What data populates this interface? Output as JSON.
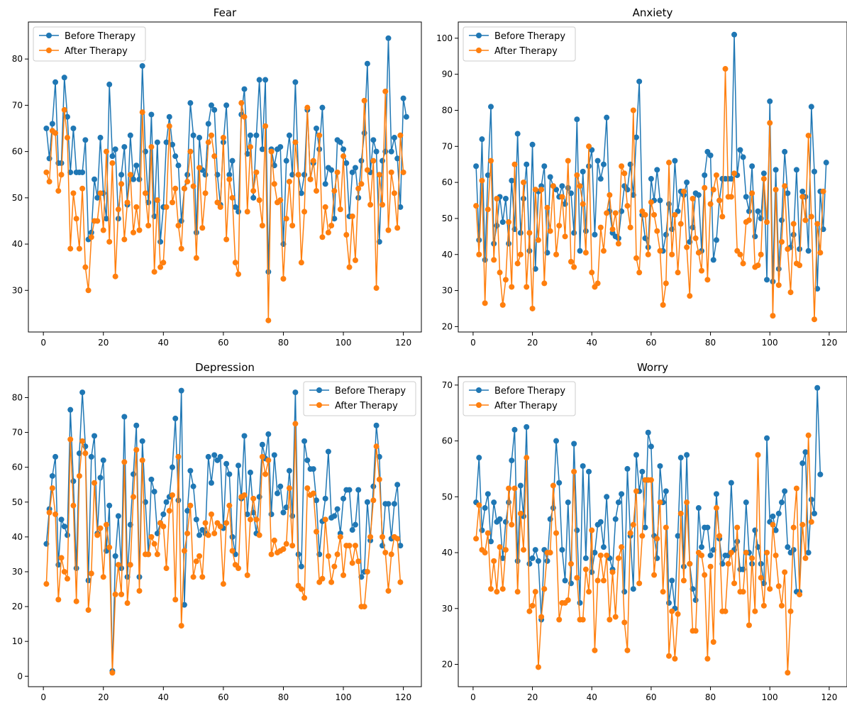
{
  "chart_data": [
    {
      "type": "line",
      "title": "Fear",
      "xlabel": "",
      "ylabel": "",
      "xlim": [
        -5,
        126
      ],
      "ylim": [
        21,
        88
      ],
      "xticks": [
        0,
        20,
        40,
        60,
        80,
        100,
        120
      ],
      "yticks": [
        30,
        40,
        50,
        60,
        70,
        80
      ],
      "legend_position": "top-left",
      "series": [
        {
          "name": "Before Therapy",
          "color": "#1f77b4",
          "values": [
            65,
            58.5,
            66,
            75,
            57.5,
            57.5,
            76,
            67.5,
            55.5,
            65,
            55.5,
            55.5,
            55.5,
            62.5,
            41,
            42.5,
            54,
            50,
            63,
            51,
            45.5,
            74.5,
            59,
            60.5,
            45.5,
            55,
            61,
            48.5,
            63.5,
            54,
            57,
            54,
            78.5,
            60,
            49,
            68,
            46,
            62,
            40.5,
            48,
            62,
            67.5,
            61.5,
            59,
            57,
            45,
            52,
            55,
            70.5,
            63.5,
            42.5,
            63,
            56,
            55,
            66,
            70,
            69,
            55,
            48.5,
            62,
            70,
            55,
            58,
            48,
            47,
            68,
            73.5,
            59.5,
            63.5,
            50,
            63.5,
            75.5,
            60.5,
            75.5,
            34,
            60.5,
            57,
            60.5,
            61,
            40,
            58,
            63.5,
            55,
            75,
            55,
            51,
            55,
            69,
            54,
            57.5,
            65,
            60.5,
            69.5,
            53,
            56.5,
            56,
            45.5,
            62.5,
            62,
            60.5,
            57.5,
            46,
            55.5,
            56.5,
            50,
            58,
            64,
            79,
            55.5,
            62.5,
            60,
            40.5,
            58,
            60,
            84.5,
            60,
            63,
            58.5,
            48,
            71.5,
            67.5
          ]
        },
        {
          "name": "After Therapy",
          "color": "#ff7f0e",
          "values": [
            55.5,
            53.5,
            64.5,
            64,
            51.5,
            55,
            69,
            63,
            39,
            51,
            45.5,
            39,
            52,
            35,
            30,
            41.5,
            45,
            45,
            51,
            43,
            60,
            40.5,
            57.5,
            33,
            47.5,
            53,
            41,
            49,
            55,
            42.5,
            48,
            43,
            68.5,
            51,
            44,
            61,
            34,
            49.5,
            35,
            36,
            48,
            65.5,
            49,
            52,
            44,
            39,
            52,
            53.5,
            60,
            52.5,
            37,
            56.5,
            43.5,
            51,
            62,
            63.5,
            59,
            49,
            48,
            63,
            41,
            54,
            50,
            36,
            33.5,
            70.5,
            67.5,
            47,
            61,
            51.5,
            55.5,
            49.5,
            44,
            65.5,
            23.5,
            60,
            53,
            49,
            49.5,
            32.5,
            45.5,
            53.5,
            44,
            62,
            55,
            36,
            47,
            69.5,
            54,
            58,
            51.5,
            63.5,
            41.5,
            48,
            42.5,
            44,
            51.5,
            55.5,
            47.5,
            59,
            42,
            35,
            46,
            36.5,
            52,
            53,
            71,
            56,
            48.5,
            58,
            30.5,
            55,
            48.5,
            73,
            43,
            55.5,
            51,
            43.5,
            63.5,
            55.5
          ]
        }
      ]
    },
    {
      "type": "line",
      "title": "Anxiety",
      "xlabel": "",
      "ylabel": "",
      "xlim": [
        -5,
        126
      ],
      "ylim": [
        18.5,
        104.5
      ],
      "xticks": [
        0,
        20,
        40,
        60,
        80,
        100,
        120
      ],
      "yticks": [
        20,
        30,
        40,
        50,
        60,
        70,
        80,
        90,
        100
      ],
      "legend_position": "top-left",
      "series": [
        {
          "name": "Before Therapy",
          "color": "#1f77b4",
          "values": [
            64.5,
            44,
            72,
            38.5,
            62,
            81,
            43,
            48,
            56,
            49,
            55.5,
            43,
            60.5,
            47,
            73.5,
            46,
            55.5,
            65,
            41,
            70.5,
            36,
            57.5,
            59,
            64.5,
            40.5,
            61.5,
            59,
            58,
            56,
            59,
            54,
            58.5,
            57,
            46,
            77.5,
            41,
            63,
            46.5,
            64.5,
            69,
            45.5,
            66,
            61,
            65,
            78,
            52,
            46,
            45,
            44.5,
            52,
            59,
            58,
            65,
            56.5,
            72.5,
            88,
            51,
            44.5,
            42,
            61,
            55,
            63.5,
            55,
            41,
            45.5,
            54,
            47,
            66,
            52,
            57.5,
            56.5,
            60,
            43.5,
            47.5,
            57,
            56.5,
            41,
            62,
            68.5,
            67.5,
            38.5,
            44,
            55,
            61,
            61,
            61,
            61,
            101,
            62,
            69,
            67,
            56,
            52,
            64.5,
            45,
            52,
            50,
            62.5,
            33,
            82.5,
            32.5,
            63.5,
            36,
            49.5,
            68.5,
            57,
            42,
            45.5,
            63.5,
            41.5,
            57.5,
            56,
            41,
            81,
            63,
            30.5,
            57.5,
            47,
            65.5
          ]
        },
        {
          "name": "After Therapy",
          "color": "#ff7f0e",
          "values": [
            53.5,
            40,
            60.5,
            26.5,
            52.5,
            66,
            38.5,
            55.5,
            35,
            26,
            33,
            49,
            31,
            65,
            37.5,
            40,
            60,
            31,
            46,
            25,
            58,
            44,
            58,
            32,
            53,
            46.5,
            59,
            40,
            48,
            56,
            45,
            66,
            38,
            36.5,
            62,
            59,
            54,
            40.5,
            70,
            35,
            31,
            32,
            47.5,
            41,
            51.5,
            56.5,
            47,
            51.5,
            43,
            64.5,
            62.5,
            53.5,
            47.5,
            80,
            39,
            35,
            52,
            51,
            40,
            54.5,
            51,
            46.5,
            41,
            26,
            32,
            65.5,
            40,
            51,
            35,
            48.5,
            57.5,
            42,
            28.5,
            55.5,
            44.5,
            40.5,
            35.5,
            58.5,
            33,
            54,
            58,
            62,
            55,
            50.5,
            91.5,
            56,
            56,
            62.5,
            41,
            40,
            37.5,
            49,
            49.5,
            57,
            36.5,
            37,
            40,
            61,
            49,
            76.5,
            23,
            58,
            31.5,
            43.5,
            59,
            41.5,
            29.5,
            48.5,
            37.5,
            37,
            56,
            49.5,
            73,
            50.5,
            22,
            48.5,
            40.5,
            57.5
          ]
        }
      ]
    },
    {
      "type": "line",
      "title": "Depression",
      "xlabel": "",
      "ylabel": "",
      "xlim": [
        -5,
        126
      ],
      "ylim": [
        -3,
        86
      ],
      "xticks": [
        0,
        20,
        40,
        60,
        80,
        100,
        120
      ],
      "yticks": [
        0,
        10,
        20,
        30,
        40,
        50,
        60,
        70,
        80
      ],
      "legend_position": "top-right",
      "series": [
        {
          "name": "Before Therapy",
          "color": "#1f77b4",
          "values": [
            38,
            48,
            57.5,
            63,
            32,
            45,
            43,
            40.5,
            76.5,
            56,
            31,
            64,
            81.5,
            66,
            27.5,
            63,
            69,
            41,
            57,
            62,
            36,
            49,
            1.5,
            34.5,
            46,
            31,
            74.5,
            28.5,
            43.5,
            58,
            72,
            28.5,
            67.5,
            50,
            35,
            56.5,
            53,
            41,
            44,
            46.5,
            50,
            51.5,
            60,
            74,
            50.5,
            82,
            20.5,
            47.5,
            59,
            54.5,
            45,
            40.5,
            42,
            41,
            63,
            55.5,
            63.5,
            62,
            63,
            42.5,
            61,
            58,
            40,
            35,
            60.5,
            51,
            69,
            46.5,
            58.5,
            47,
            41,
            51.5,
            66.5,
            62.5,
            69.5,
            46.5,
            63.5,
            52.5,
            54.5,
            47,
            48.5,
            59,
            46,
            81.5,
            35,
            31.5,
            67.5,
            62,
            59.5,
            59.5,
            50.5,
            35,
            44.5,
            51,
            64.5,
            45.5,
            46,
            48,
            41,
            51,
            53.5,
            53.5,
            42,
            43.5,
            53.5,
            28.5,
            30,
            50,
            39,
            54.5,
            72,
            63,
            37.5,
            49.5,
            49.5,
            39.5,
            49.5,
            55,
            37.5
          ]
        },
        {
          "name": "After Therapy",
          "color": "#ff7f0e",
          "values": [
            26.5,
            47,
            54,
            46.5,
            22,
            34,
            30,
            28,
            68,
            49,
            21.5,
            57.5,
            67.5,
            64,
            19,
            29.5,
            55.5,
            40.5,
            42.5,
            28.5,
            43.5,
            37,
            1,
            23.5,
            32,
            23.5,
            61.5,
            21,
            32,
            51.5,
            65,
            24.5,
            62,
            35,
            35,
            40,
            38,
            35,
            44,
            43,
            31,
            47.5,
            52,
            22,
            63,
            14.5,
            36,
            41,
            49,
            28.5,
            33,
            34.5,
            28.5,
            44,
            40.5,
            46.5,
            41,
            44,
            43,
            26.5,
            44,
            49,
            36,
            32,
            31,
            51.5,
            52,
            29,
            45,
            51,
            45,
            40.5,
            63,
            58,
            62,
            35,
            39,
            35.5,
            36,
            36.5,
            38,
            54,
            37.5,
            72.5,
            26,
            25,
            22.5,
            54,
            52,
            52.5,
            41.5,
            27,
            28,
            45,
            34.5,
            27,
            31.5,
            35,
            40,
            29,
            37.5,
            37.5,
            32.5,
            37.5,
            33,
            20,
            20,
            30,
            40,
            50.5,
            66,
            56.5,
            40,
            35.5,
            24.5,
            35,
            40,
            39.5,
            27
          ]
        }
      ]
    },
    {
      "type": "line",
      "title": "Worry",
      "xlabel": "",
      "ylabel": "",
      "xlim": [
        -5,
        126
      ],
      "ylim": [
        16,
        71.5
      ],
      "xticks": [
        0,
        20,
        40,
        60,
        80,
        100,
        120
      ],
      "yticks": [
        20,
        30,
        40,
        50,
        60,
        70
      ],
      "legend_position": "top-left",
      "series": [
        {
          "name": "Before Therapy",
          "color": "#1f77b4",
          "values": [
            49,
            57,
            44,
            48,
            50.5,
            42,
            49,
            45.5,
            46,
            39,
            45.5,
            49,
            56.5,
            62,
            38.5,
            52,
            46.5,
            62.5,
            38,
            39,
            40.5,
            38.5,
            28,
            40.5,
            38.5,
            46,
            48,
            60,
            52.5,
            40.5,
            35,
            49,
            34.5,
            59.5,
            44,
            31,
            55.5,
            39,
            54.5,
            36.5,
            40,
            45,
            45.5,
            41,
            50,
            39,
            37,
            46,
            49,
            50.5,
            33,
            55,
            43,
            33.5,
            57.5,
            51,
            54.5,
            44.5,
            61.5,
            59,
            43,
            39,
            55.5,
            49,
            51,
            31,
            35,
            30,
            43,
            57,
            37.5,
            57.5,
            38,
            33.5,
            31.5,
            48,
            41,
            44.5,
            44.5,
            39.5,
            40.5,
            50.5,
            42.5,
            38,
            39.5,
            39.5,
            52.5,
            40.5,
            42,
            37,
            37,
            49,
            40,
            38,
            44,
            41,
            38,
            34.5,
            60.5,
            45.5,
            46.5,
            44,
            47,
            49,
            51,
            41,
            40,
            40.5,
            33,
            33,
            56,
            58,
            40,
            49.5,
            47,
            69.5,
            54
          ]
        },
        {
          "name": "After Therapy",
          "color": "#ff7f0e",
          "values": [
            42.5,
            48.5,
            40.5,
            40,
            43.5,
            33.5,
            38.5,
            33,
            41,
            33.5,
            40.5,
            51.5,
            45,
            51.5,
            33,
            47,
            40.5,
            57,
            29.5,
            30.5,
            33,
            19.5,
            28.5,
            33.5,
            40,
            40,
            52,
            43.5,
            28,
            31,
            31,
            31.5,
            38,
            54.5,
            35.5,
            28,
            28,
            37,
            33,
            44,
            22.5,
            35,
            39.5,
            35,
            39.5,
            28,
            36.5,
            28.5,
            39,
            41,
            27.5,
            22.5,
            43.5,
            45,
            51,
            34.5,
            43,
            53,
            53,
            53,
            36,
            42.5,
            49,
            33,
            44.5,
            21.5,
            29.5,
            21,
            29,
            47,
            35,
            49,
            38,
            26,
            26,
            40,
            39.5,
            36,
            21,
            37.5,
            24,
            48,
            43,
            29.5,
            29.5,
            38,
            40,
            34.5,
            44.5,
            33,
            33,
            40,
            27,
            39,
            29.5,
            57.5,
            35.5,
            30.5,
            40,
            33.5,
            45,
            39.5,
            34,
            30.5,
            36.5,
            18.5,
            29.5,
            44.5,
            51.5,
            32.5,
            45,
            39,
            61,
            45.5
          ]
        }
      ]
    }
  ]
}
